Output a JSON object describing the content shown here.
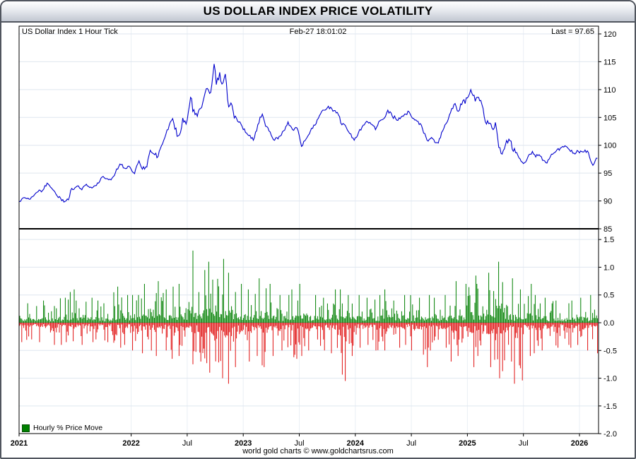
{
  "window": {
    "title": "US DOLLAR INDEX PRICE VOLATILITY"
  },
  "chart_header": {
    "left": "US Dollar Index 1 Hour Tick",
    "timestamp": "Feb-27 18:01:02",
    "last": "Last = 97.65",
    "last_value": 97.65
  },
  "legend": {
    "label": "Hourly % Price Move",
    "color": "#008000"
  },
  "footer": {
    "credit": "world gold charts © www.goldchartsrus.com"
  },
  "colors": {
    "price_line": "#0000cc",
    "up_green": "#008000",
    "down_red": "#e01010",
    "grid": "#dfe6ef",
    "titlebar_top": "#ffffff",
    "titlebar_bottom": "#c2c7d1"
  },
  "chart_data": [
    {
      "type": "line",
      "name": "US Dollar Index 1 Hour Tick",
      "x_unit": "decimal_year",
      "xlim": [
        2021.0,
        2026.17
      ],
      "ylim": [
        85,
        120
      ],
      "yticks": [
        85,
        90,
        95,
        100,
        105,
        110,
        115,
        120
      ],
      "xticks": [
        {
          "t": 2021.0,
          "label": "2021"
        },
        {
          "t": 2022.0,
          "label": "2022"
        },
        {
          "t": 2022.5,
          "label": "Jul"
        },
        {
          "t": 2023.0,
          "label": "2023"
        },
        {
          "t": 2023.5,
          "label": "Jul"
        },
        {
          "t": 2024.0,
          "label": "2024"
        },
        {
          "t": 2024.5,
          "label": "Jul"
        },
        {
          "t": 2025.0,
          "label": "2025"
        },
        {
          "t": 2025.5,
          "label": "Jul"
        },
        {
          "t": 2026.0,
          "label": "2026"
        }
      ],
      "line_color": "#0000cc",
      "last": 97.65,
      "points": [
        [
          2021.0,
          89.9
        ],
        [
          2021.05,
          90.6
        ],
        [
          2021.09,
          90.3
        ],
        [
          2021.13,
          90.9
        ],
        [
          2021.17,
          91.7
        ],
        [
          2021.21,
          91.9
        ],
        [
          2021.25,
          93.2
        ],
        [
          2021.29,
          92.3
        ],
        [
          2021.33,
          91.2
        ],
        [
          2021.37,
          90.5
        ],
        [
          2021.4,
          89.8
        ],
        [
          2021.44,
          90.2
        ],
        [
          2021.46,
          91.9
        ],
        [
          2021.5,
          92.4
        ],
        [
          2021.53,
          92.7
        ],
        [
          2021.56,
          92.0
        ],
        [
          2021.6,
          93.0
        ],
        [
          2021.63,
          92.4
        ],
        [
          2021.67,
          92.7
        ],
        [
          2021.71,
          93.2
        ],
        [
          2021.74,
          94.3
        ],
        [
          2021.77,
          94.0
        ],
        [
          2021.8,
          93.8
        ],
        [
          2021.83,
          94.1
        ],
        [
          2021.86,
          95.1
        ],
        [
          2021.89,
          96.2
        ],
        [
          2021.91,
          96.5
        ],
        [
          2021.94,
          95.9
        ],
        [
          2021.97,
          96.2
        ],
        [
          2022.0,
          95.7
        ],
        [
          2022.03,
          94.9
        ],
        [
          2022.07,
          97.2
        ],
        [
          2022.1,
          95.7
        ],
        [
          2022.14,
          96.1
        ],
        [
          2022.17,
          99.1
        ],
        [
          2022.21,
          98.3
        ],
        [
          2022.24,
          98.0
        ],
        [
          2022.27,
          99.9
        ],
        [
          2022.31,
          102.0
        ],
        [
          2022.34,
          103.6
        ],
        [
          2022.37,
          104.8
        ],
        [
          2022.41,
          101.6
        ],
        [
          2022.44,
          102.3
        ],
        [
          2022.46,
          104.9
        ],
        [
          2022.49,
          103.8
        ],
        [
          2022.53,
          108.6
        ],
        [
          2022.56,
          106.4
        ],
        [
          2022.59,
          105.2
        ],
        [
          2022.62,
          106.6
        ],
        [
          2022.65,
          108.6
        ],
        [
          2022.68,
          110.2
        ],
        [
          2022.71,
          109.5
        ],
        [
          2022.74,
          114.6
        ],
        [
          2022.76,
          110.9
        ],
        [
          2022.79,
          113.1
        ],
        [
          2022.81,
          111.0
        ],
        [
          2022.84,
          112.8
        ],
        [
          2022.87,
          106.9
        ],
        [
          2022.9,
          107.2
        ],
        [
          2022.92,
          104.9
        ],
        [
          2022.95,
          104.3
        ],
        [
          2022.98,
          103.8
        ],
        [
          2023.02,
          102.3
        ],
        [
          2023.06,
          101.8
        ],
        [
          2023.09,
          100.9
        ],
        [
          2023.13,
          103.7
        ],
        [
          2023.17,
          105.6
        ],
        [
          2023.2,
          103.4
        ],
        [
          2023.24,
          102.4
        ],
        [
          2023.28,
          100.9
        ],
        [
          2023.32,
          101.6
        ],
        [
          2023.36,
          102.6
        ],
        [
          2023.4,
          104.2
        ],
        [
          2023.44,
          102.8
        ],
        [
          2023.48,
          103.1
        ],
        [
          2023.52,
          99.8
        ],
        [
          2023.56,
          101.1
        ],
        [
          2023.6,
          102.6
        ],
        [
          2023.64,
          103.6
        ],
        [
          2023.68,
          105.3
        ],
        [
          2023.72,
          106.3
        ],
        [
          2023.76,
          107.0
        ],
        [
          2023.8,
          106.1
        ],
        [
          2023.84,
          105.9
        ],
        [
          2023.87,
          104.0
        ],
        [
          2023.91,
          103.6
        ],
        [
          2023.95,
          102.1
        ],
        [
          2023.99,
          100.9
        ],
        [
          2024.03,
          102.4
        ],
        [
          2024.07,
          103.6
        ],
        [
          2024.11,
          104.2
        ],
        [
          2024.15,
          103.7
        ],
        [
          2024.18,
          102.8
        ],
        [
          2024.22,
          104.4
        ],
        [
          2024.26,
          104.9
        ],
        [
          2024.29,
          106.3
        ],
        [
          2024.33,
          105.2
        ],
        [
          2024.37,
          104.5
        ],
        [
          2024.41,
          105.1
        ],
        [
          2024.45,
          105.6
        ],
        [
          2024.48,
          106.0
        ],
        [
          2024.52,
          104.8
        ],
        [
          2024.56,
          104.3
        ],
        [
          2024.6,
          102.9
        ],
        [
          2024.64,
          100.9
        ],
        [
          2024.68,
          101.4
        ],
        [
          2024.71,
          100.5
        ],
        [
          2024.74,
          100.4
        ],
        [
          2024.78,
          102.6
        ],
        [
          2024.82,
          104.2
        ],
        [
          2024.86,
          106.6
        ],
        [
          2024.89,
          107.5
        ],
        [
          2024.92,
          106.1
        ],
        [
          2024.96,
          108.0
        ],
        [
          2025.0,
          108.5
        ],
        [
          2025.03,
          110.0
        ],
        [
          2025.07,
          107.9
        ],
        [
          2025.1,
          108.6
        ],
        [
          2025.13,
          107.3
        ],
        [
          2025.16,
          104.2
        ],
        [
          2025.19,
          103.9
        ],
        [
          2025.23,
          102.8
        ],
        [
          2025.25,
          104.1
        ],
        [
          2025.28,
          99.6
        ],
        [
          2025.31,
          98.4
        ],
        [
          2025.34,
          100.1
        ],
        [
          2025.37,
          101.1
        ],
        [
          2025.4,
          99.3
        ],
        [
          2025.44,
          98.7
        ],
        [
          2025.48,
          97.1
        ],
        [
          2025.5,
          96.7
        ],
        [
          2025.54,
          97.9
        ],
        [
          2025.58,
          98.9
        ],
        [
          2025.61,
          97.9
        ],
        [
          2025.64,
          98.3
        ],
        [
          2025.68,
          97.3
        ],
        [
          2025.71,
          96.8
        ],
        [
          2025.75,
          98.4
        ],
        [
          2025.79,
          98.9
        ],
        [
          2025.83,
          99.5
        ],
        [
          2025.87,
          99.9
        ],
        [
          2025.91,
          99.2
        ],
        [
          2025.95,
          98.6
        ],
        [
          2025.99,
          98.9
        ],
        [
          2026.03,
          98.8
        ],
        [
          2026.07,
          99.0
        ],
        [
          2026.1,
          97.2
        ],
        [
          2026.12,
          96.4
        ],
        [
          2026.14,
          97.2
        ],
        [
          2026.16,
          97.65
        ]
      ]
    },
    {
      "type": "bar",
      "name": "Hourly % Price Move",
      "ylim": [
        -2.0,
        1.5
      ],
      "yticks": [
        "1.5",
        "1.0",
        "0.5",
        "0.0",
        "-0.5",
        "-1.0",
        "-1.5",
        "-2.0"
      ],
      "up_color": "#008000",
      "down_color": "#e01010",
      "envelope_unit": "percent_per_hour",
      "monthly_envelopes": [
        [
          2021.0,
          0.35,
          0.35
        ],
        [
          2021.083,
          0.3,
          0.3
        ],
        [
          2021.167,
          0.4,
          0.35
        ],
        [
          2021.25,
          0.3,
          0.4
        ],
        [
          2021.333,
          0.45,
          0.4
        ],
        [
          2021.417,
          0.6,
          0.35
        ],
        [
          2021.5,
          0.4,
          0.4
        ],
        [
          2021.583,
          0.45,
          0.35
        ],
        [
          2021.667,
          0.4,
          0.3
        ],
        [
          2021.75,
          0.35,
          0.35
        ],
        [
          2021.833,
          0.65,
          0.45
        ],
        [
          2021.917,
          0.5,
          0.4
        ],
        [
          2022.0,
          0.5,
          0.5
        ],
        [
          2022.083,
          0.7,
          0.55
        ],
        [
          2022.167,
          0.75,
          0.6
        ],
        [
          2022.25,
          0.6,
          0.5
        ],
        [
          2022.333,
          0.65,
          0.65
        ],
        [
          2022.417,
          0.7,
          0.6
        ],
        [
          2022.5,
          1.3,
          0.75
        ],
        [
          2022.583,
          0.95,
          0.7
        ],
        [
          2022.667,
          1.1,
          0.9
        ],
        [
          2022.75,
          1.15,
          1.0
        ],
        [
          2022.833,
          0.9,
          1.1
        ],
        [
          2022.917,
          0.7,
          0.8
        ],
        [
          2023.0,
          0.6,
          0.7
        ],
        [
          2023.083,
          0.8,
          0.6
        ],
        [
          2023.167,
          0.7,
          0.8
        ],
        [
          2023.25,
          0.5,
          0.6
        ],
        [
          2023.333,
          0.5,
          0.5
        ],
        [
          2023.417,
          0.6,
          0.65
        ],
        [
          2023.5,
          0.7,
          0.6
        ],
        [
          2023.583,
          0.5,
          0.5
        ],
        [
          2023.667,
          0.45,
          0.5
        ],
        [
          2023.75,
          0.6,
          0.55
        ],
        [
          2023.833,
          0.6,
          1.05
        ],
        [
          2023.917,
          0.5,
          0.6
        ],
        [
          2024.0,
          0.5,
          0.45
        ],
        [
          2024.083,
          0.45,
          0.4
        ],
        [
          2024.167,
          0.5,
          0.5
        ],
        [
          2024.25,
          0.6,
          0.5
        ],
        [
          2024.333,
          0.4,
          0.45
        ],
        [
          2024.417,
          0.5,
          0.4
        ],
        [
          2024.5,
          0.45,
          0.5
        ],
        [
          2024.583,
          0.5,
          0.8
        ],
        [
          2024.667,
          0.45,
          0.5
        ],
        [
          2024.75,
          0.5,
          0.45
        ],
        [
          2024.833,
          0.75,
          0.7
        ],
        [
          2024.917,
          0.7,
          0.6
        ],
        [
          2025.0,
          0.85,
          0.8
        ],
        [
          2025.083,
          0.7,
          0.6
        ],
        [
          2025.167,
          0.9,
          0.8
        ],
        [
          2025.25,
          1.1,
          1.0
        ],
        [
          2025.333,
          0.8,
          0.7
        ],
        [
          2025.417,
          0.6,
          1.1
        ],
        [
          2025.5,
          0.7,
          0.6
        ],
        [
          2025.583,
          0.5,
          0.55
        ],
        [
          2025.667,
          0.45,
          0.5
        ],
        [
          2025.75,
          0.4,
          0.45
        ],
        [
          2025.833,
          0.35,
          0.4
        ],
        [
          2025.917,
          0.4,
          0.45
        ],
        [
          2026.0,
          0.45,
          0.5
        ],
        [
          2026.083,
          0.5,
          0.55
        ]
      ]
    }
  ]
}
